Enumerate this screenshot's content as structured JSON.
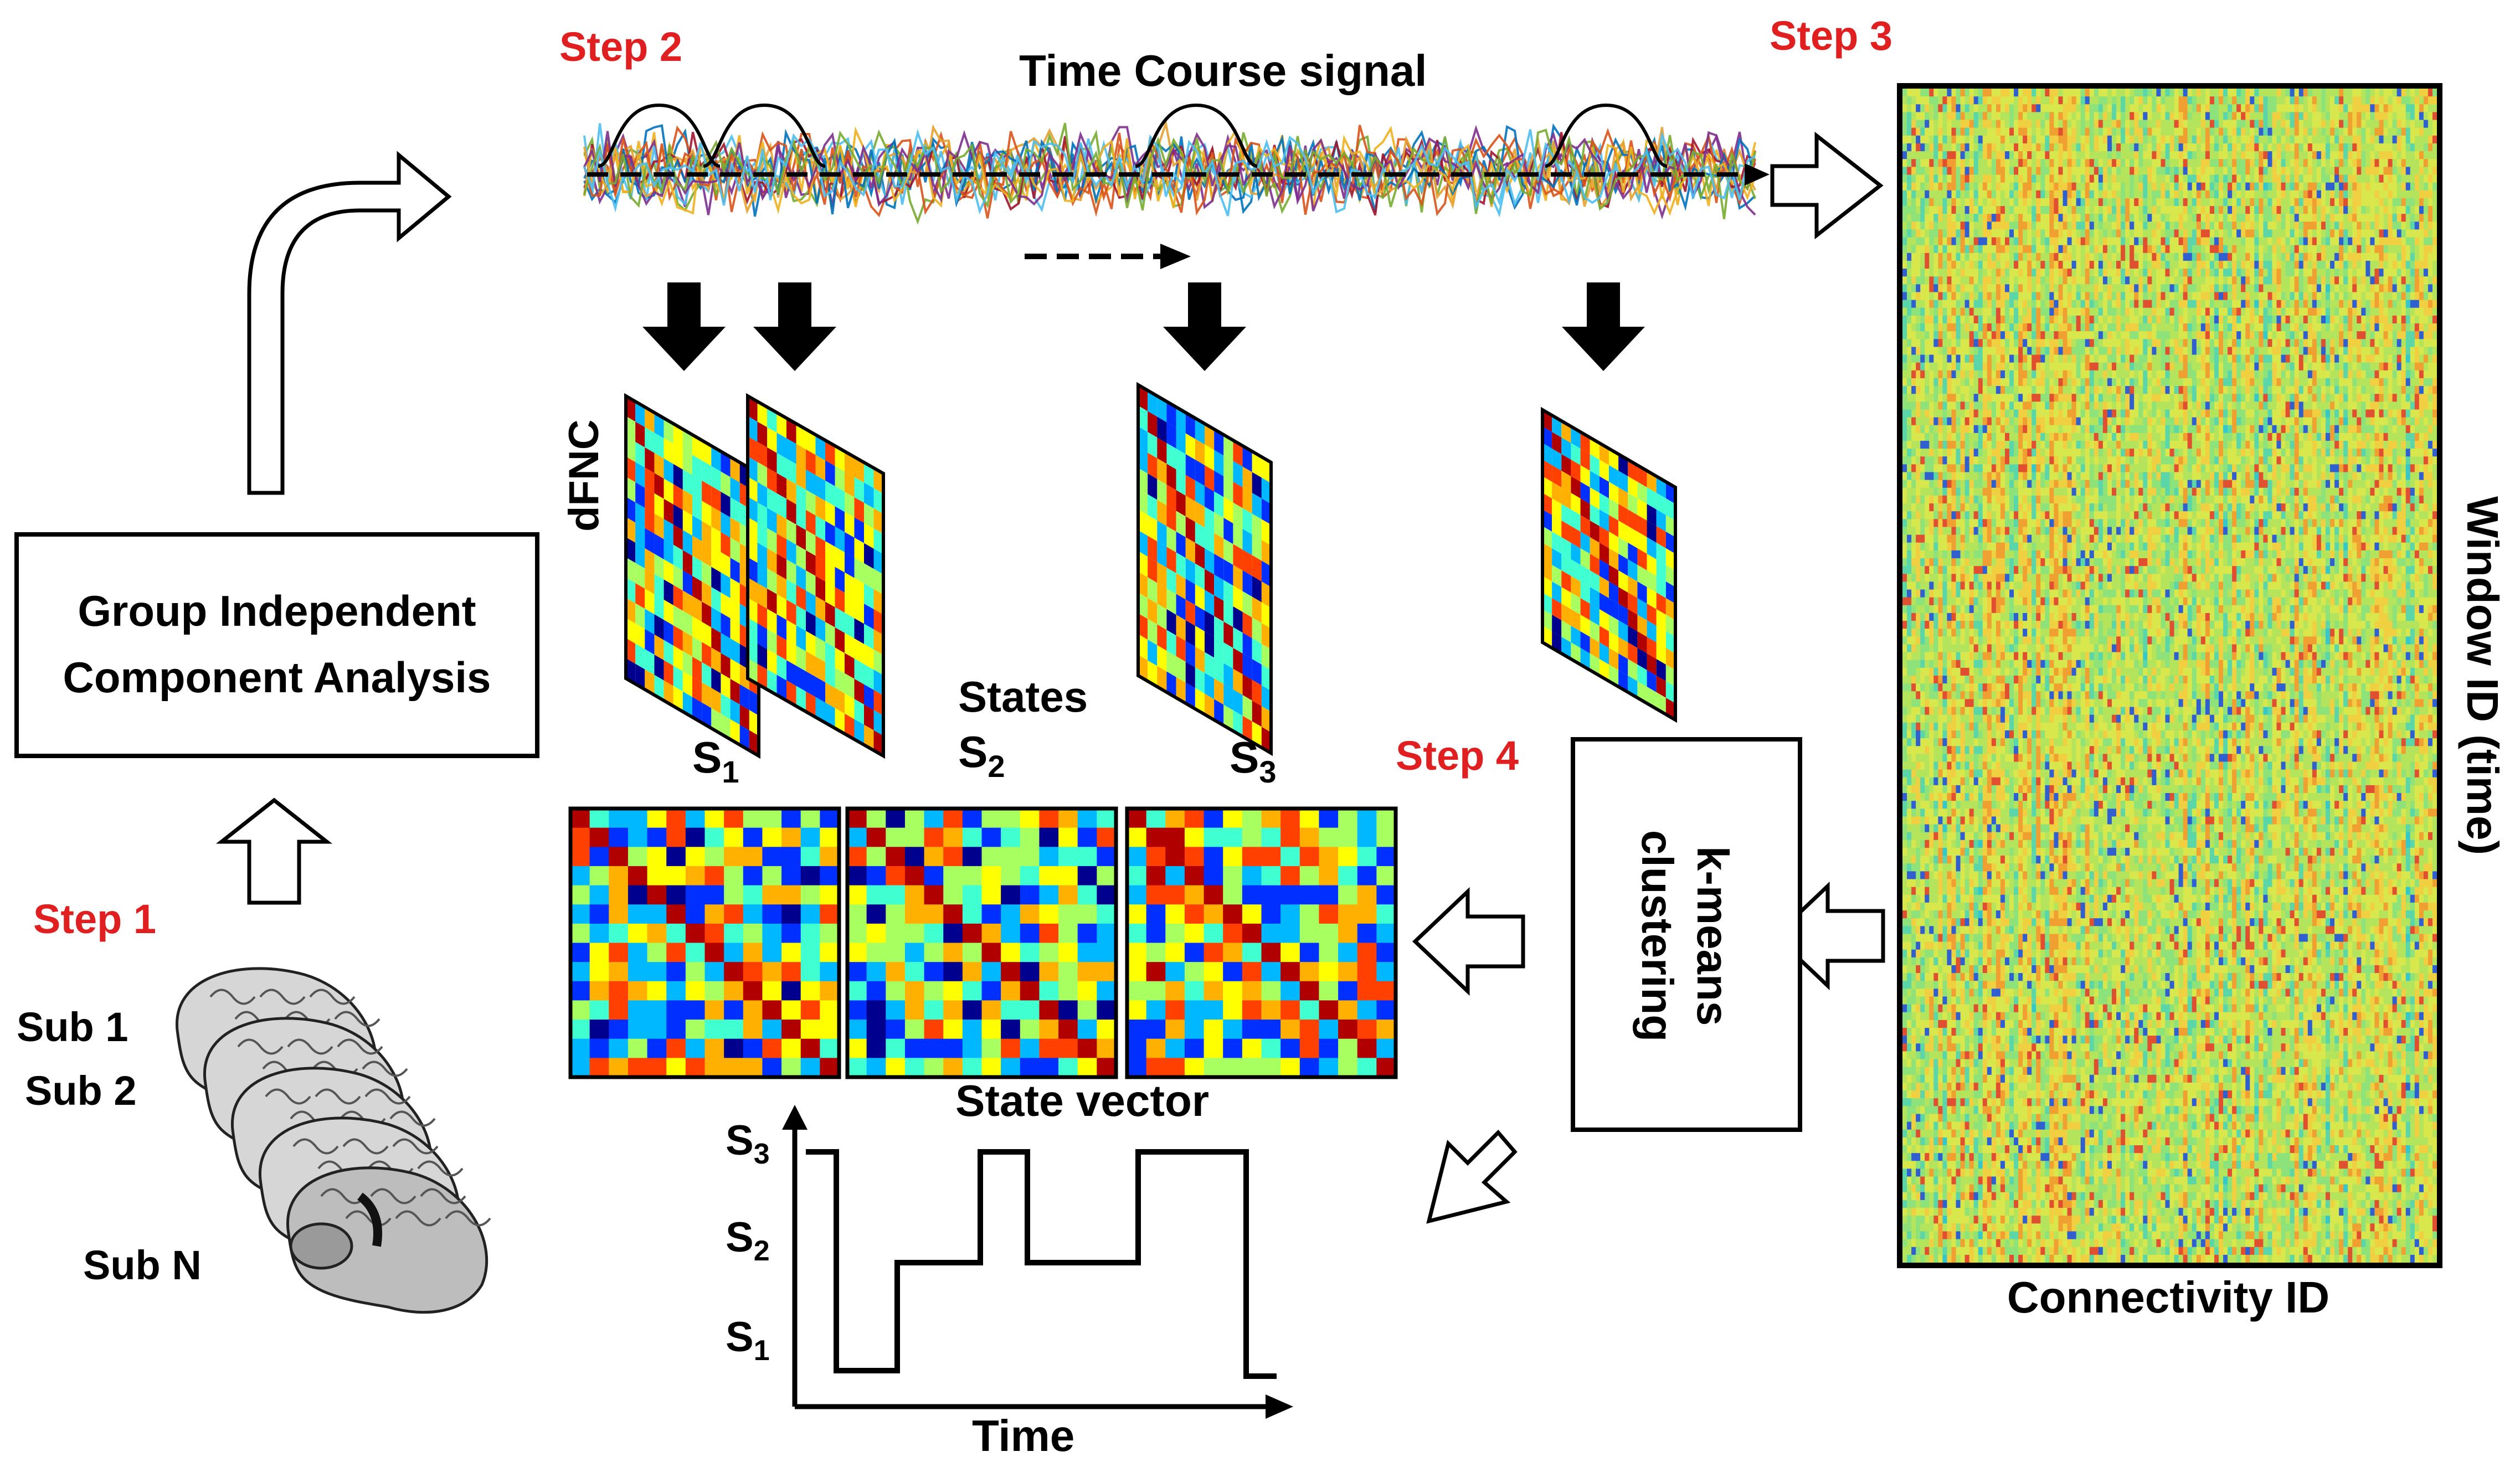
{
  "steps": {
    "step1": "Step 1",
    "step2": "Step 2",
    "step3": "Step 3",
    "step4": "Step 4"
  },
  "colors": {
    "step_label": "#e02020",
    "outline": "#000000",
    "colormap": [
      "#00008f",
      "#0030ff",
      "#00b8ff",
      "#40ffd0",
      "#a8ff60",
      "#ffff00",
      "#ffb000",
      "#ff4000",
      "#b00000"
    ]
  },
  "gica_box": {
    "line1": "Group Independent",
    "line2": "Component Analysis"
  },
  "subjects": [
    "Sub 1",
    "Sub 2",
    "Sub N"
  ],
  "time_course": {
    "title": "Time  Course signal"
  },
  "dfnc_label": "dFNC",
  "states": {
    "title": "States",
    "items": [
      {
        "base": "S",
        "sub": "1"
      },
      {
        "base": "S",
        "sub": "2"
      },
      {
        "base": "S",
        "sub": "3"
      }
    ]
  },
  "kmeans_box": {
    "line1": "k-means",
    "line2": "clustering"
  },
  "state_vector": {
    "title": "State vector",
    "x_label": "Time",
    "y_levels": [
      {
        "base": "S",
        "sub": "3"
      },
      {
        "base": "S",
        "sub": "2"
      },
      {
        "base": "S",
        "sub": "1"
      }
    ]
  },
  "matrix_panel": {
    "x_label": "Connectivity ID",
    "y_label": "Window ID (time)"
  }
}
